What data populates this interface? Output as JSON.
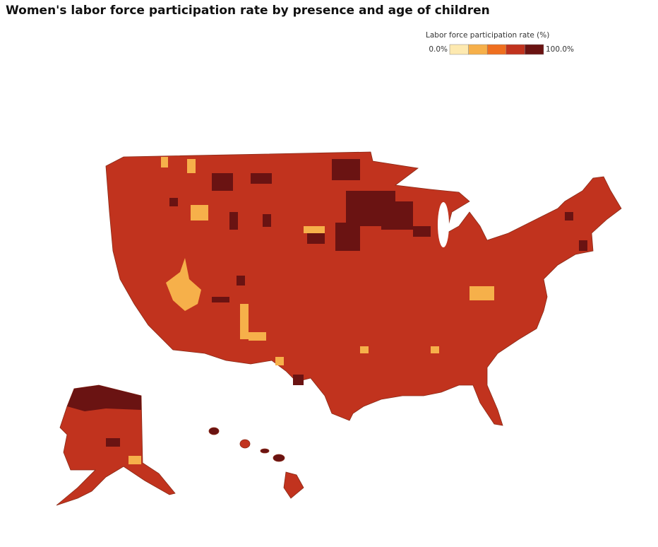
{
  "chart_data": {
    "type": "choropleth",
    "title": "Women's labor force participation rate by presence and age of children",
    "legend": {
      "title": "Labor force participation rate (%)",
      "min": {
        "value": 0,
        "label": "0.0%"
      },
      "max": {
        "value": 100,
        "label": "100.0%"
      },
      "colors": [
        "#fde9b0",
        "#f6b04a",
        "#ef6f1f",
        "#c1331e",
        "#6a1312"
      ]
    }
  }
}
